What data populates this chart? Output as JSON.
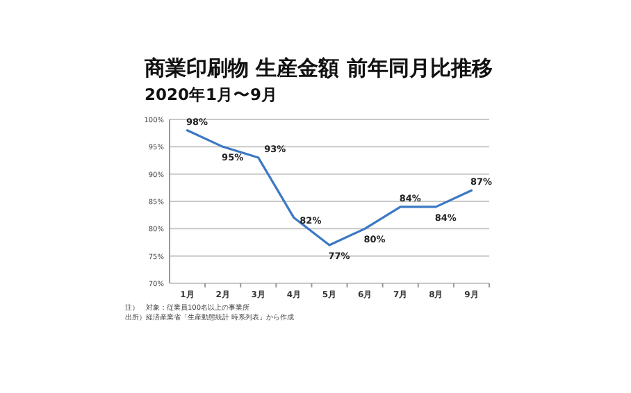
{
  "chart_data": {
    "type": "line",
    "title": "商業印刷物 生産金額 前年同月比推移",
    "subtitle": "2020年1月〜9月",
    "categories": [
      "1月",
      "2月",
      "3月",
      "4月",
      "5月",
      "6月",
      "7月",
      "8月",
      "9月"
    ],
    "series": [
      {
        "color": "#3b78c4",
        "values": [
          98,
          95,
          93,
          82,
          77,
          80,
          84,
          84,
          87
        ],
        "value_labels": [
          "98%",
          "95%",
          "93%",
          "82%",
          "77%",
          "80%",
          "84%",
          "84%",
          "87%"
        ]
      }
    ],
    "ylim": [
      70,
      100
    ],
    "yticks": [
      {
        "value": 70,
        "label": "70%"
      },
      {
        "value": 75,
        "label": "75%"
      },
      {
        "value": 80,
        "label": "80%"
      },
      {
        "value": 85,
        "label": "85%"
      },
      {
        "value": 90,
        "label": "90%"
      },
      {
        "value": 95,
        "label": "95%"
      },
      {
        "value": 100,
        "label": "100%"
      }
    ],
    "grid": "y",
    "marker": "none",
    "annotations": [
      "注）　対象：従業員100名以上の事業所",
      "出所）経済産業省「生産動態統計 時系列表」から作成"
    ]
  }
}
